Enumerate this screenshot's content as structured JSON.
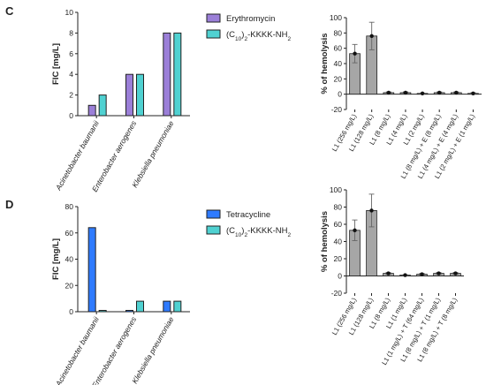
{
  "panels": [
    {
      "letter": "C"
    },
    {
      "letter": "D"
    }
  ],
  "colors": {
    "erythromycin": "#9b7fd8",
    "tetracycline": "#2f7bff",
    "peptide": "#4fd1d1",
    "hemolysis_bar": "#a6a6a6",
    "axis": "#222222"
  },
  "chart_data": [
    {
      "id": "C-left",
      "type": "bar",
      "ylabel": "FIC [mg/L]",
      "ylim": [
        0,
        10
      ],
      "yticks": [
        0,
        2,
        4,
        6,
        8,
        10
      ],
      "categories": [
        "Acinetobacter baumanii",
        "Enterobacter aerogenes",
        "Klebsiella pneumoniae"
      ],
      "series": [
        {
          "name": "Erythromycin",
          "values": [
            1,
            4,
            8
          ]
        },
        {
          "name": "(C10)2-KKKK-NH2",
          "values": [
            2,
            4,
            8
          ]
        }
      ],
      "legend": "top-right"
    },
    {
      "id": "C-right",
      "type": "bar",
      "ylabel": "% of hemolysis",
      "ylim": [
        -20,
        100
      ],
      "yticks": [
        -20,
        0,
        20,
        40,
        60,
        80,
        100
      ],
      "categories": [
        "L1 (256 mg/L)",
        "L1 (128 mg/L)",
        "L1 (8 mg/L)",
        "L1 (4 mg/L)",
        "L1 (2 mg/L)",
        "L1 (8 mg/L) + E (8 mg/L)",
        "L1 (4 mg/L) + E (4 mg/L)",
        "L1 (2 mg/L) + E (1 mg/L)"
      ],
      "values": [
        53,
        76,
        2,
        2,
        1,
        2,
        2,
        1
      ],
      "errors": [
        12,
        18,
        1,
        1,
        0.5,
        1,
        1,
        1
      ]
    },
    {
      "id": "D-left",
      "type": "bar",
      "ylabel": "FIC [mg/L]",
      "ylim": [
        0,
        80
      ],
      "yticks": [
        0,
        20,
        40,
        60,
        80
      ],
      "categories": [
        "Acinetobacter baumanii",
        "Enterobacter aerogenes",
        "Klebsiella pneumoniae"
      ],
      "series": [
        {
          "name": "Tetracycline",
          "values": [
            64,
            1,
            8
          ]
        },
        {
          "name": "(C10)2-KKKK-NH2",
          "values": [
            1,
            8,
            8
          ]
        }
      ],
      "legend": "top-right"
    },
    {
      "id": "D-right",
      "type": "bar",
      "ylabel": "% of hemolysis",
      "ylim": [
        -20,
        100
      ],
      "yticks": [
        -20,
        0,
        20,
        40,
        60,
        80,
        100
      ],
      "categories": [
        "L1 (256 mg/L)",
        "L1 (128 mg/L)",
        "L1 (8 mg/L)",
        "L1 (1 mg/L)",
        "L1 (1 mg/L) + T (64 mg/L)",
        "L1 (8 mg/L) + T (1 mg/L)",
        "L1 (8 mg/L) + T (8 mg/L)"
      ],
      "values": [
        53,
        76,
        3,
        1,
        2,
        3,
        3
      ],
      "errors": [
        12,
        19,
        1,
        0.5,
        1,
        1,
        1
      ]
    }
  ],
  "legends": [
    {
      "panel": "C",
      "items": [
        {
          "label": "Erythromycin",
          "color_key": "erythromycin"
        },
        {
          "label_main": "(C",
          "label_sub": "10",
          "label_end": ")",
          "label_sub2": "2",
          "label_tail": "-KKKK-NH",
          "label_sub3": "2",
          "color_key": "peptide"
        }
      ]
    },
    {
      "panel": "D",
      "items": [
        {
          "label": "Tetracycline",
          "color_key": "tetracycline"
        },
        {
          "label_main": "(C",
          "label_sub": "10",
          "label_end": ")",
          "label_sub2": "2",
          "label_tail": "-KKKK-NH",
          "label_sub3": "2",
          "color_key": "peptide"
        }
      ]
    }
  ]
}
